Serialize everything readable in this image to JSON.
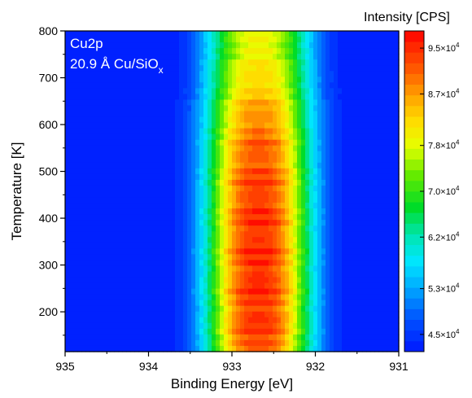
{
  "chart_data": {
    "type": "heatmap",
    "title": "",
    "xlabel": "Binding Energy [eV]",
    "ylabel": "Temperature [K]",
    "xlim": [
      935,
      931
    ],
    "ylim": [
      115,
      800
    ],
    "x_reversed": true,
    "x_ticks": [
      "935",
      "934",
      "933",
      "932",
      "931"
    ],
    "y_ticks": [
      "200",
      "300",
      "400",
      "500",
      "600",
      "700",
      "800"
    ],
    "grid": false,
    "annotations": {
      "line1": "Cu2p",
      "line2_main": "20.9 Å Cu/SiO",
      "line2_sub": "x"
    },
    "colorbar": {
      "title": "Intensity [CPS]",
      "min": 42000,
      "max": 98000,
      "levels": 30,
      "ticks": [
        {
          "value": 95000,
          "label": "9.5×10",
          "exp": "4"
        },
        {
          "value": 87000,
          "label": "8.7×10",
          "exp": "4"
        },
        {
          "value": 78000,
          "label": "7.8×10",
          "exp": "4"
        },
        {
          "value": 70000,
          "label": "7.0×10",
          "exp": "4"
        },
        {
          "value": 62000,
          "label": "6.2×10",
          "exp": "4"
        },
        {
          "value": 53000,
          "label": "5.3×10",
          "exp": "4"
        },
        {
          "value": 45000,
          "label": "4.5×10",
          "exp": "4"
        }
      ]
    },
    "peak": {
      "center_ev": 932.68,
      "fwhm_ev": 0.9,
      "background_cps": 42000,
      "amplitude_by_temperature": [
        {
          "temperature": 115,
          "peak_cps": 93000
        },
        {
          "temperature": 200,
          "peak_cps": 94500
        },
        {
          "temperature": 300,
          "peak_cps": 95000
        },
        {
          "temperature": 400,
          "peak_cps": 94500
        },
        {
          "temperature": 500,
          "peak_cps": 93000
        },
        {
          "temperature": 600,
          "peak_cps": 89000
        },
        {
          "temperature": 700,
          "peak_cps": 82000
        },
        {
          "temperature": 800,
          "peak_cps": 78000
        }
      ]
    },
    "colors": {
      "background": "#0a1fff",
      "low": "#0000ff",
      "high": "#ff0000"
    }
  }
}
